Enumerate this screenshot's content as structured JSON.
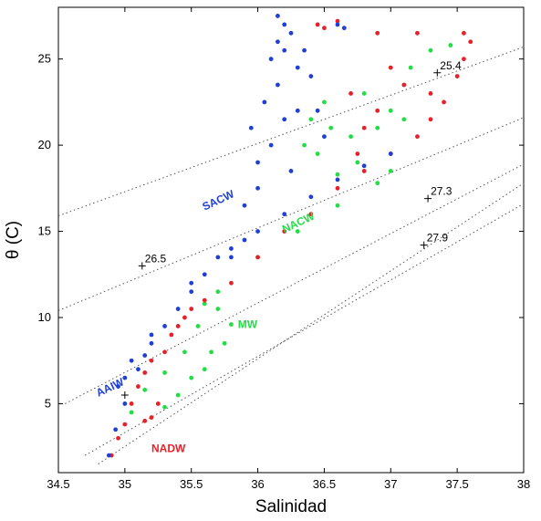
{
  "chart_data": {
    "type": "scatter",
    "xlabel": "Salinidad",
    "ylabel": "θ (C)",
    "xlim": [
      34.5,
      38
    ],
    "ylim": [
      1,
      28
    ],
    "xticks": [
      "34.5",
      "35",
      "35.5",
      "36",
      "36.5",
      "37",
      "37.5",
      "38"
    ],
    "yticks": [
      "5",
      "10",
      "15",
      "20",
      "25"
    ],
    "isopycnals": [
      {
        "label": "25.4",
        "marker": [
          37.35,
          24.2
        ],
        "line": [
          [
            34.5,
            15.9
          ],
          [
            38,
            25.7
          ]
        ]
      },
      {
        "label": "26.5",
        "marker": [
          35.13,
          13.0
        ],
        "line": [
          [
            34.5,
            10.4
          ],
          [
            38,
            21.6
          ]
        ]
      },
      {
        "label": "27.3",
        "marker": [
          37.28,
          16.9
        ],
        "line": [
          [
            34.55,
            5.0
          ],
          [
            38,
            18.9
          ]
        ]
      },
      {
        "label": "27.9",
        "marker": [
          37.25,
          14.2
        ],
        "line": [
          [
            34.7,
            2.0
          ],
          [
            38,
            16.6
          ]
        ]
      },
      {
        "label": "",
        "marker": [
          35.0,
          5.5
        ],
        "line": [
          [
            34.8,
            1.5
          ],
          [
            38,
            17.8
          ]
        ]
      }
    ],
    "water_masses": [
      {
        "label": "SACW",
        "color": "#1f3fd6",
        "label_pos": [
          35.6,
          16.2
        ]
      },
      {
        "label": "NACW",
        "color": "#22dd44",
        "label_pos": [
          36.2,
          14.9
        ]
      },
      {
        "label": "MW",
        "color": "#22dd44",
        "label_pos": [
          35.85,
          9.4
        ]
      },
      {
        "label": "AAIW",
        "color": "#1f3fd6",
        "label_pos": [
          34.8,
          5.4
        ]
      },
      {
        "label": "NADW",
        "color": "#e8202a",
        "label_pos": [
          35.2,
          2.2
        ]
      }
    ],
    "series": [
      {
        "color": "#22dd44",
        "points": [
          [
            35.05,
            4.5
          ],
          [
            35.15,
            5.8
          ],
          [
            35.3,
            6.8
          ],
          [
            35.45,
            8.0
          ],
          [
            35.55,
            9.5
          ],
          [
            35.6,
            10.8
          ],
          [
            35.7,
            10.5
          ],
          [
            35.8,
            9.6
          ],
          [
            35.75,
            8.5
          ],
          [
            35.65,
            8.0
          ],
          [
            35.6,
            7.0
          ],
          [
            35.5,
            6.5
          ],
          [
            35.4,
            5.5
          ],
          [
            35.3,
            4.8
          ],
          [
            35.7,
            11.5
          ],
          [
            36.0,
            13.5
          ],
          [
            36.3,
            15.0
          ],
          [
            36.6,
            16.5
          ],
          [
            36.9,
            17.8
          ],
          [
            37.0,
            18.5
          ],
          [
            36.4,
            21.5
          ],
          [
            36.5,
            22.5
          ],
          [
            36.7,
            20.5
          ],
          [
            36.8,
            23.0
          ],
          [
            36.9,
            21.0
          ],
          [
            37.0,
            22.0
          ],
          [
            37.1,
            21.5
          ],
          [
            37.15,
            24.5
          ],
          [
            37.3,
            25.5
          ],
          [
            37.45,
            25.8
          ],
          [
            36.45,
            19.5
          ],
          [
            36.6,
            18.3
          ],
          [
            36.75,
            19.0
          ],
          [
            36.35,
            20.0
          ],
          [
            36.55,
            21.0
          ]
        ]
      },
      {
        "color": "#e8202a",
        "points": [
          [
            34.9,
            2.0
          ],
          [
            34.95,
            3.0
          ],
          [
            35.0,
            3.8
          ],
          [
            35.05,
            5.0
          ],
          [
            35.1,
            6.0
          ],
          [
            35.15,
            6.8
          ],
          [
            35.2,
            7.5
          ],
          [
            35.3,
            8.0
          ],
          [
            35.35,
            9.0
          ],
          [
            35.4,
            9.5
          ],
          [
            35.45,
            10.0
          ],
          [
            35.5,
            10.5
          ],
          [
            35.6,
            11.0
          ],
          [
            35.8,
            12.0
          ],
          [
            36.0,
            13.5
          ],
          [
            36.2,
            15.0
          ],
          [
            36.4,
            16.0
          ],
          [
            36.6,
            17.5
          ],
          [
            36.8,
            18.5
          ],
          [
            37.0,
            19.5
          ],
          [
            37.2,
            20.5
          ],
          [
            37.3,
            21.5
          ],
          [
            37.4,
            22.5
          ],
          [
            37.5,
            24.0
          ],
          [
            37.55,
            25.0
          ],
          [
            37.6,
            26.0
          ],
          [
            37.55,
            26.5
          ],
          [
            37.2,
            26.5
          ],
          [
            36.9,
            26.5
          ],
          [
            36.5,
            26.8
          ],
          [
            36.45,
            27.0
          ],
          [
            36.6,
            27.2
          ],
          [
            36.7,
            23.0
          ],
          [
            36.9,
            22.0
          ],
          [
            37.1,
            23.5
          ],
          [
            37.0,
            24.5
          ],
          [
            36.8,
            21.0
          ],
          [
            36.75,
            19.5
          ],
          [
            37.3,
            23.0
          ],
          [
            35.25,
            5.0
          ],
          [
            35.2,
            4.2
          ],
          [
            35.15,
            4.0
          ]
        ]
      },
      {
        "color": "#1f3fd6",
        "points": [
          [
            34.88,
            2.0
          ],
          [
            34.93,
            3.5
          ],
          [
            35.0,
            5.0
          ],
          [
            34.95,
            6.0
          ],
          [
            35.0,
            6.5
          ],
          [
            35.1,
            7.0
          ],
          [
            35.15,
            7.8
          ],
          [
            35.2,
            8.5
          ],
          [
            35.3,
            9.5
          ],
          [
            35.4,
            10.5
          ],
          [
            35.5,
            11.5
          ],
          [
            35.6,
            12.5
          ],
          [
            35.7,
            13.5
          ],
          [
            35.8,
            14.0
          ],
          [
            35.9,
            14.5
          ],
          [
            36.0,
            15.0
          ],
          [
            36.2,
            16.0
          ],
          [
            36.4,
            17.0
          ],
          [
            36.6,
            18.0
          ],
          [
            36.8,
            18.8
          ],
          [
            37.0,
            19.5
          ],
          [
            35.9,
            16.5
          ],
          [
            36.0,
            17.5
          ],
          [
            36.0,
            19.0
          ],
          [
            35.95,
            21.0
          ],
          [
            36.05,
            22.5
          ],
          [
            36.15,
            23.5
          ],
          [
            36.1,
            20.0
          ],
          [
            36.2,
            21.5
          ],
          [
            36.3,
            22.0
          ],
          [
            36.1,
            25.0
          ],
          [
            36.15,
            26.0
          ],
          [
            36.2,
            27.0
          ],
          [
            36.15,
            27.5
          ],
          [
            36.25,
            26.5
          ],
          [
            36.35,
            25.5
          ],
          [
            36.4,
            24.0
          ],
          [
            36.45,
            22.0
          ],
          [
            36.5,
            20.5
          ],
          [
            36.25,
            18.5
          ],
          [
            35.8,
            13.5
          ],
          [
            35.5,
            12.0
          ],
          [
            35.2,
            9.0
          ],
          [
            35.05,
            7.5
          ],
          [
            36.6,
            27.0
          ],
          [
            36.65,
            26.8
          ],
          [
            36.3,
            24.5
          ],
          [
            36.2,
            25.5
          ]
        ]
      }
    ]
  }
}
